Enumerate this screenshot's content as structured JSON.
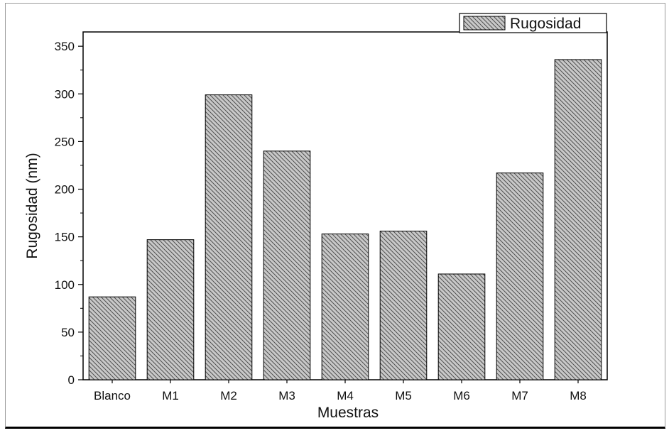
{
  "chart_data": {
    "type": "bar",
    "categories": [
      "Blanco",
      "M1",
      "M2",
      "M3",
      "M4",
      "M5",
      "M6",
      "M7",
      "M8"
    ],
    "series": [
      {
        "name": "Rugosidad",
        "values": [
          87,
          147,
          299,
          240,
          153,
          156,
          111,
          217,
          336
        ]
      }
    ],
    "xlabel": "Muestras",
    "ylabel": "Rugosidad (nm)",
    "ylim": [
      0,
      365
    ],
    "yticks": [
      0,
      50,
      100,
      150,
      200,
      250,
      300,
      350
    ],
    "bar_fill": "#c8c8c8",
    "bar_hatch": "#505050",
    "legend_position": "top-right",
    "grid": false
  }
}
